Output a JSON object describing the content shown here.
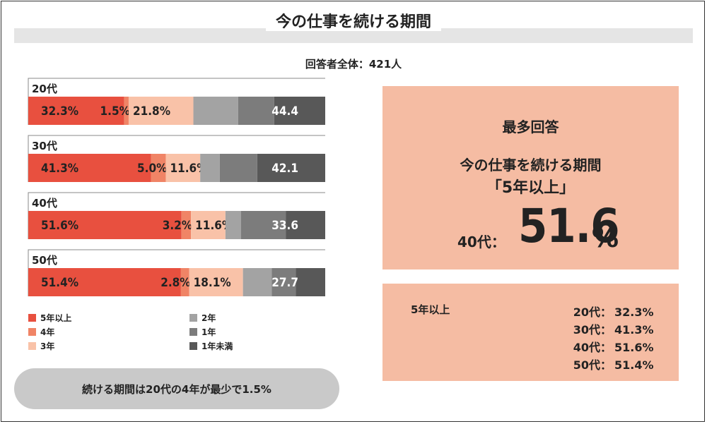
{
  "title": "今の仕事を続ける期間",
  "respondents": "回答者全体：421人",
  "colors": {
    "5年以上": "#e8503f",
    "4年": "#f08466",
    "3年": "#f9c2a8",
    "2年": "#a3a3a3",
    "1年": "#7c7c7c",
    "1年未満": "#585858",
    "highlight_bg": "#f5bca3",
    "pill_bg": "#c9c9c9"
  },
  "chart_data": {
    "type": "bar",
    "orientation": "horizontal-stacked-100",
    "categories": [
      "20代",
      "30代",
      "40代",
      "50代"
    ],
    "series": [
      {
        "name": "5年以上",
        "values": [
          32.3,
          41.3,
          51.6,
          51.4
        ],
        "labels": [
          "32.3%",
          "41.3%",
          "51.6%",
          "51.4%"
        ]
      },
      {
        "name": "4年",
        "values": [
          1.5,
          5.0,
          3.2,
          2.8
        ],
        "labels": [
          "1.5%",
          "5.0%",
          "3.2%",
          "2.8%"
        ]
      },
      {
        "name": "3年",
        "values": [
          21.8,
          11.6,
          11.6,
          18.1
        ],
        "labels": [
          "21.8%",
          "11.6%",
          "11.6%",
          "18.1%"
        ]
      },
      {
        "name": "2年",
        "values": [
          15.1,
          6.6,
          5.2,
          9.7
        ],
        "labels": [
          "",
          "",
          "",
          ""
        ]
      },
      {
        "name": "1年",
        "values": [
          12.1,
          12.6,
          15.1,
          8.1
        ],
        "labels": [
          "",
          "",
          "",
          ""
        ]
      },
      {
        "name": "1年未満",
        "values": [
          17.2,
          22.9,
          13.3,
          9.9
        ],
        "labels": [
          "",
          "",
          "",
          ""
        ]
      }
    ],
    "group_totals": [
      44.4,
      42.1,
      33.6,
      27.7
    ],
    "xlim": [
      0,
      100
    ],
    "legend": {
      "placement": "bottom",
      "left": [
        "5年以上",
        "4年",
        "3年"
      ],
      "right": [
        "2年",
        "1年",
        "1年未満"
      ]
    }
  },
  "note": "続ける期間は20代の4年が最少で1.5%",
  "highlight": {
    "heading": "最多回答",
    "sub1": "今の仕事を続ける期間",
    "sub2": "「5年以上」",
    "age_label": "40代：",
    "value": "51.6",
    "unit": "%"
  },
  "summary": {
    "title": "5年以上",
    "rows": [
      {
        "age": "20代：",
        "pct": "32.3%"
      },
      {
        "age": "30代：",
        "pct": "41.3%"
      },
      {
        "age": "40代：",
        "pct": "51.6%"
      },
      {
        "age": "50代：",
        "pct": "51.4%"
      }
    ]
  }
}
